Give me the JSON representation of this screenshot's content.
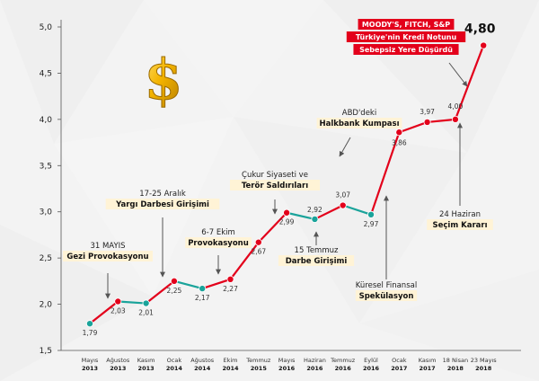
{
  "chart_data": {
    "type": "line",
    "categories": [
      [
        "Mayıs",
        "2013"
      ],
      [
        "Ağustos",
        "2013"
      ],
      [
        "Kasım",
        "2013"
      ],
      [
        "Ocak",
        "2014"
      ],
      [
        "Ağustos",
        "2014"
      ],
      [
        "Ekim",
        "2014"
      ],
      [
        "Temmuz",
        "2015"
      ],
      [
        "Mayıs",
        "2016"
      ],
      [
        "Haziran",
        "2016"
      ],
      [
        "Temmuz",
        "2016"
      ],
      [
        "Eylül",
        "2016"
      ],
      [
        "Ocak",
        "2017"
      ],
      [
        "Kasım",
        "2017"
      ],
      [
        "18 Nisan",
        "2018"
      ],
      [
        "23 Mayıs",
        "2018"
      ]
    ],
    "values": [
      1.79,
      2.03,
      2.01,
      2.25,
      2.17,
      2.27,
      2.67,
      2.99,
      2.92,
      3.07,
      2.97,
      3.86,
      3.97,
      4.0,
      4.8
    ],
    "value_labels": [
      "1,79",
      "2,03",
      "2,01",
      "2,25",
      "2,17",
      "2,27",
      "2,67",
      "2,99",
      "2,92",
      "3,07",
      "2,97",
      "3,86",
      "3,97",
      "4,00",
      "4,80"
    ],
    "point_colors": [
      "#1aa39a",
      "#e3001b",
      "#1aa39a",
      "#e3001b",
      "#1aa39a",
      "#e3001b",
      "#e3001b",
      "#e3001b",
      "#1aa39a",
      "#e3001b",
      "#1aa39a",
      "#e3001b",
      "#e3001b",
      "#e3001b",
      "#e3001b"
    ],
    "ylim": [
      1.5,
      5.0
    ],
    "yticks": [
      1.5,
      2.0,
      2.5,
      3.0,
      3.5,
      4.0,
      4.5,
      5.0
    ],
    "ytick_labels": [
      "1,5",
      "2,0",
      "2,5",
      "3,0",
      "3,5",
      "4,0",
      "4,5",
      "5,0"
    ],
    "grid": false,
    "colors": {
      "up": "#e3001b",
      "down": "#1aa39a",
      "box": "#fff3d6",
      "red_box": "#e3001b"
    },
    "annotations": [
      {
        "id": "gezi",
        "lines": [
          {
            "text": "31 MAYIS",
            "boxed": false
          },
          {
            "text": "Gezi Provokasyonu",
            "boxed": true
          }
        ]
      },
      {
        "id": "yargi",
        "lines": [
          {
            "text": "17-25 Aralık",
            "boxed": false
          },
          {
            "text": "Yargı Darbesi Girişimi",
            "boxed": true
          }
        ]
      },
      {
        "id": "ekim",
        "lines": [
          {
            "text": "6-7 Ekim",
            "boxed": false
          },
          {
            "text": "Provokasyonu",
            "boxed": true
          }
        ]
      },
      {
        "id": "cukur",
        "lines": [
          {
            "text": "Çukur Siyaseti ve",
            "boxed": false
          },
          {
            "text": "Terör Saldırıları",
            "boxed": true
          }
        ]
      },
      {
        "id": "darbe",
        "lines": [
          {
            "text": "15 Temmuz",
            "boxed": false
          },
          {
            "text": "Darbe Girişimi",
            "boxed": true
          }
        ]
      },
      {
        "id": "kuresel",
        "lines": [
          {
            "text": "Küresel Finansal",
            "boxed": false
          },
          {
            "text": "Spekülasyon",
            "boxed": true
          }
        ]
      },
      {
        "id": "halkbank",
        "lines": [
          {
            "text": "ABD'deki",
            "boxed": false
          },
          {
            "text": "Halkbank Kumpası",
            "boxed": true
          }
        ]
      },
      {
        "id": "secim",
        "lines": [
          {
            "text": "24 Haziran",
            "boxed": false
          },
          {
            "text": "Seçim Kararı",
            "boxed": true
          }
        ]
      },
      {
        "id": "moodys",
        "lines": [
          {
            "text": "MOODY'S, FITCH, S&P",
            "boxed": false
          },
          {
            "text": "Türkiye'nin Kredi Notunu",
            "boxed": true
          },
          {
            "text": "Sebepsiz Yere Düşürdü",
            "boxed": true
          }
        ]
      }
    ],
    "icon": "dollar-sign-icon"
  }
}
